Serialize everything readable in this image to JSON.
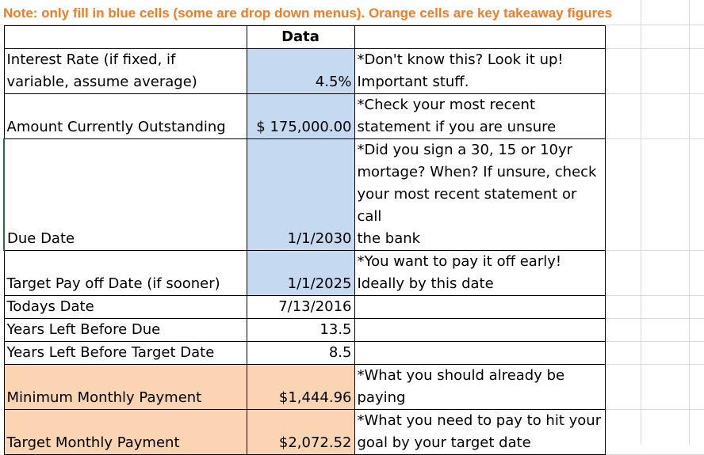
{
  "note_text": "Note: only fill in blue cells (some are drop down menus). Orange cells are key takeaway figures",
  "colors": {
    "note_text": "#f47b20",
    "blue_cell": "#c5d9f1",
    "orange_cell": "#fbd4b4",
    "green_border": "#217346"
  },
  "table": {
    "header": "Data",
    "rows": [
      {
        "label": "Interest Rate (if fixed, if\nvariable, assume average)",
        "value": "4.5%",
        "note": "*Don't know this? Look it up!\nImportant stuff.",
        "fill": "blue"
      },
      {
        "label": "Amount Currently Outstanding",
        "value": "$ 175,000.00",
        "note": "*Check your most recent\nstatement if you are unsure",
        "fill": "blue"
      },
      {
        "label": "Due Date",
        "value": "1/1/2030",
        "note": "*Did you sign a 30, 15 or 10yr\nmortage? When? If unsure, check\nyour most recent statement or call\nthe bank",
        "fill": "blue"
      },
      {
        "label": "Target Pay off Date (if sooner)",
        "value": "1/1/2025",
        "note": "*You want to pay it off early!\nIdeally by this date",
        "fill": "blue"
      },
      {
        "label": "Todays Date",
        "value": "7/13/2016",
        "note": "",
        "fill": "none"
      },
      {
        "label": "Years Left Before Due",
        "value": "13.5",
        "note": "",
        "fill": "none"
      },
      {
        "label": "Years Left Before Target Date",
        "value": "8.5",
        "note": "",
        "fill": "none"
      },
      {
        "label": "Minimum Monthly Payment",
        "value": "$1,444.96",
        "note": "*What you should already be\npaying",
        "fill": "orange"
      },
      {
        "label": "Target Monthly Payment",
        "value": "$2,072.52",
        "note": "*What you need to pay to hit your\ngoal by your target date",
        "fill": "orange"
      }
    ]
  }
}
